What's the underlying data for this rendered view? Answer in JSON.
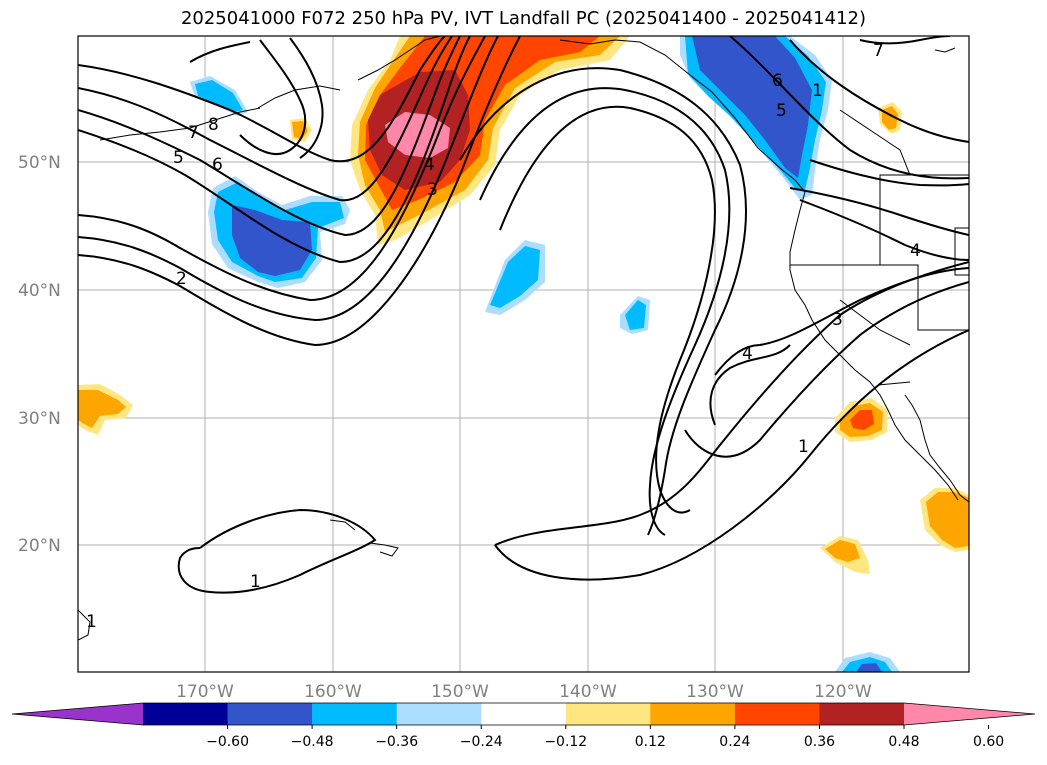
{
  "title": "2025041000 F072 250 hPa PV, IVT Landfall PC (2025041400 - 2025041412)",
  "lat_labels": [
    "50°N",
    "40°N",
    "30°N",
    "20°N"
  ],
  "lon_labels": [
    "170°W",
    "160°W",
    "150°W",
    "140°W",
    "130°W",
    "120°W"
  ],
  "colorbar": {
    "ticks": [
      "−0.60",
      "−0.48",
      "−0.36",
      "−0.24",
      "−0.12",
      "0.12",
      "0.24",
      "0.36",
      "0.48",
      "0.60"
    ],
    "colors": [
      "#9933cc",
      "#000099",
      "#3355cc",
      "#00bbff",
      "#aaddff",
      "#ffffff",
      "#ffe680",
      "#ffa500",
      "#ff4500",
      "#b22222",
      "#ff88aa"
    ]
  },
  "contour_labels": [
    "7",
    "8",
    "5",
    "6",
    "2",
    "1",
    "4",
    "3",
    "1",
    "6",
    "5",
    "7",
    "4",
    "3",
    "4",
    "1",
    "1"
  ]
}
